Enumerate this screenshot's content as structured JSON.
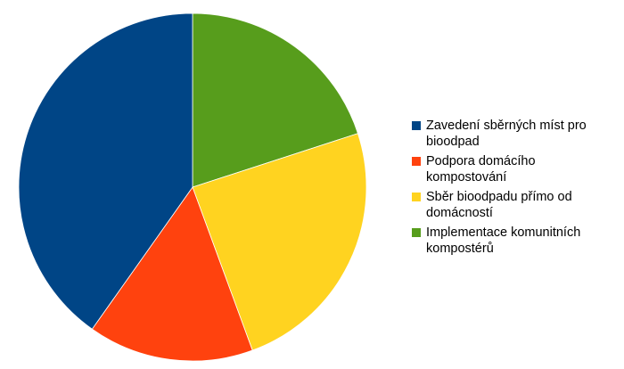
{
  "chart_data": {
    "type": "pie",
    "title": "",
    "legend_position": "right",
    "start_angle_deg": 0,
    "direction": "clockwise",
    "slices": [
      {
        "label": "Implementace komunitních kompostérů",
        "value": 20.0,
        "color": "#579d1c"
      },
      {
        "label": "Sběr bioodpadu přímo od domácností",
        "value": 24.4,
        "color": "#ffd320"
      },
      {
        "label": "Podpora domácího kompostování",
        "value": 15.4,
        "color": "#ff420e"
      },
      {
        "label": "Zavedení sběrných míst pro bioodpad",
        "value": 40.2,
        "color": "#004586"
      }
    ],
    "legend": [
      {
        "label": "Zavedení sběrných míst pro bioodpad",
        "color": "#004586"
      },
      {
        "label": "Podpora domácího kompostování",
        "color": "#ff420e"
      },
      {
        "label": "Sběr bioodpadu přímo od domácností",
        "color": "#ffd320"
      },
      {
        "label": "Implementace komunitních kompostérů",
        "color": "#579d1c"
      }
    ]
  }
}
